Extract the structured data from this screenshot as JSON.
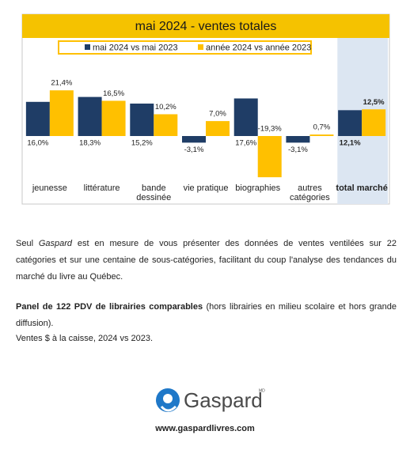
{
  "chart_data": {
    "type": "bar",
    "title": "mai 2024 - ventes totales",
    "categories": [
      "jeunesse",
      "littérature",
      "bande dessinée",
      "vie pratique",
      "biographies",
      "autres catégories",
      "total marché"
    ],
    "highlight_category": 6,
    "highlight_color": "#dce6f2",
    "title_color": "#f5c200",
    "series": [
      {
        "name": "mai 2024 vs mai 2023",
        "color": "#1f3d66",
        "values": [
          16.0,
          18.3,
          15.2,
          -3.1,
          17.6,
          -3.1,
          12.1
        ],
        "value_labels": [
          "16,0%",
          "18,3%",
          "15,2%",
          "-3,1%",
          "17,6%",
          "-3,1%",
          "12,1%"
        ]
      },
      {
        "name": "année 2024 vs année 2023",
        "color": "#ffc000",
        "values": [
          21.4,
          16.5,
          10.2,
          7.0,
          -19.3,
          0.7,
          12.5
        ],
        "value_labels": [
          "21,4%",
          "16,5%",
          "10,2%",
          "7,0%",
          "-19,3%",
          "0,7%",
          "12,5%"
        ]
      }
    ]
  },
  "body": {
    "paragraph1": [
      "Seul ",
      "Gaspard",
      " est en mesure de vous présenter des données de ventes ventilées sur 22 catégories et sur une centaine de sous-catégories, facilitant du coup l'analyse des tendances du marché du livre au Québec."
    ],
    "paragraph2": [
      "Panel de 122 PDV de librairies comparables",
      " (hors librairies en milieu scolaire et hors grande diffusion)."
    ],
    "paragraph3": "Ventes $ à la caisse, 2024 vs 2023."
  },
  "footer": {
    "logo": "Gaspard",
    "trademark": "MD",
    "website": "www.gaspardlivres.com"
  }
}
